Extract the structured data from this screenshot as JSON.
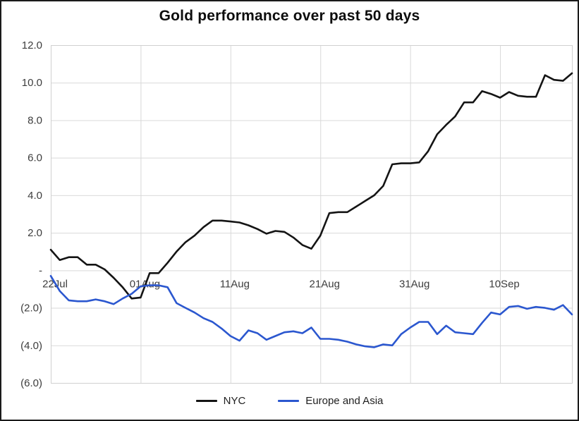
{
  "title": "Gold performance over past 50 days",
  "legend": {
    "items": [
      {
        "label": "NYC",
        "color": "#141414"
      },
      {
        "label": "Europe and Asia",
        "color": "#2b57cf"
      }
    ]
  },
  "colors": {
    "gridline": "#d9d9d9",
    "plot_border": "#d0d0d0",
    "axis_text": "#3d3d3d",
    "outer_border": "#1a1a1a",
    "background": "#ffffff"
  },
  "chart_data": {
    "type": "line",
    "title": "Gold performance over past 50 days",
    "xlabel": "",
    "ylabel": "",
    "ylim": [
      -6,
      12
    ],
    "grid": true,
    "legend_position": "bottom",
    "y_tick_labels": [
      "12.0",
      "10.0",
      "8.0",
      "6.0",
      "4.0",
      "2.0",
      "-",
      "(2.0)",
      "(4.0)",
      "(6.0)"
    ],
    "y_tick_values": [
      12,
      10,
      8,
      6,
      4,
      2,
      0,
      -2,
      -4,
      -6
    ],
    "x_tick_labels": [
      "22Jul",
      "01Aug",
      "11Aug",
      "21Aug",
      "31Aug",
      "10Sep"
    ],
    "x_tick_indices": [
      0,
      10,
      20,
      30,
      40,
      50
    ],
    "n_points": 59,
    "series": [
      {
        "name": "NYC",
        "color": "#141414",
        "values": [
          1.1,
          0.55,
          0.7,
          0.7,
          0.3,
          0.3,
          0.05,
          -0.4,
          -0.9,
          -1.5,
          -1.45,
          -0.15,
          -0.15,
          0.4,
          1.0,
          1.5,
          1.85,
          2.3,
          2.65,
          2.65,
          2.6,
          2.55,
          2.4,
          2.2,
          1.95,
          2.1,
          2.05,
          1.75,
          1.35,
          1.15,
          1.85,
          3.05,
          3.1,
          3.1,
          3.4,
          3.7,
          4.0,
          4.5,
          5.65,
          5.7,
          5.7,
          5.75,
          6.35,
          7.25,
          7.75,
          8.2,
          8.95,
          8.95,
          9.55,
          9.4,
          9.2,
          9.5,
          9.3,
          9.25,
          9.25,
          10.4,
          10.15,
          10.1,
          10.5
        ]
      },
      {
        "name": "Europe and Asia",
        "color": "#2b57cf",
        "values": [
          -0.3,
          -1.1,
          -1.6,
          -1.65,
          -1.65,
          -1.55,
          -1.65,
          -1.8,
          -1.5,
          -1.25,
          -0.85,
          -0.8,
          -0.8,
          -0.9,
          -1.75,
          -2.0,
          -2.25,
          -2.55,
          -2.75,
          -3.1,
          -3.5,
          -3.75,
          -3.2,
          -3.35,
          -3.7,
          -3.5,
          -3.3,
          -3.25,
          -3.35,
          -3.05,
          -3.65,
          -3.65,
          -3.7,
          -3.8,
          -3.95,
          -4.05,
          -4.1,
          -3.95,
          -4.0,
          -3.4,
          -3.05,
          -2.75,
          -2.75,
          -3.4,
          -2.95,
          -3.3,
          -3.35,
          -3.4,
          -2.8,
          -2.25,
          -2.35,
          -1.95,
          -1.9,
          -2.05,
          -1.95,
          -2.0,
          -2.1,
          -1.85,
          -2.35
        ]
      }
    ]
  }
}
